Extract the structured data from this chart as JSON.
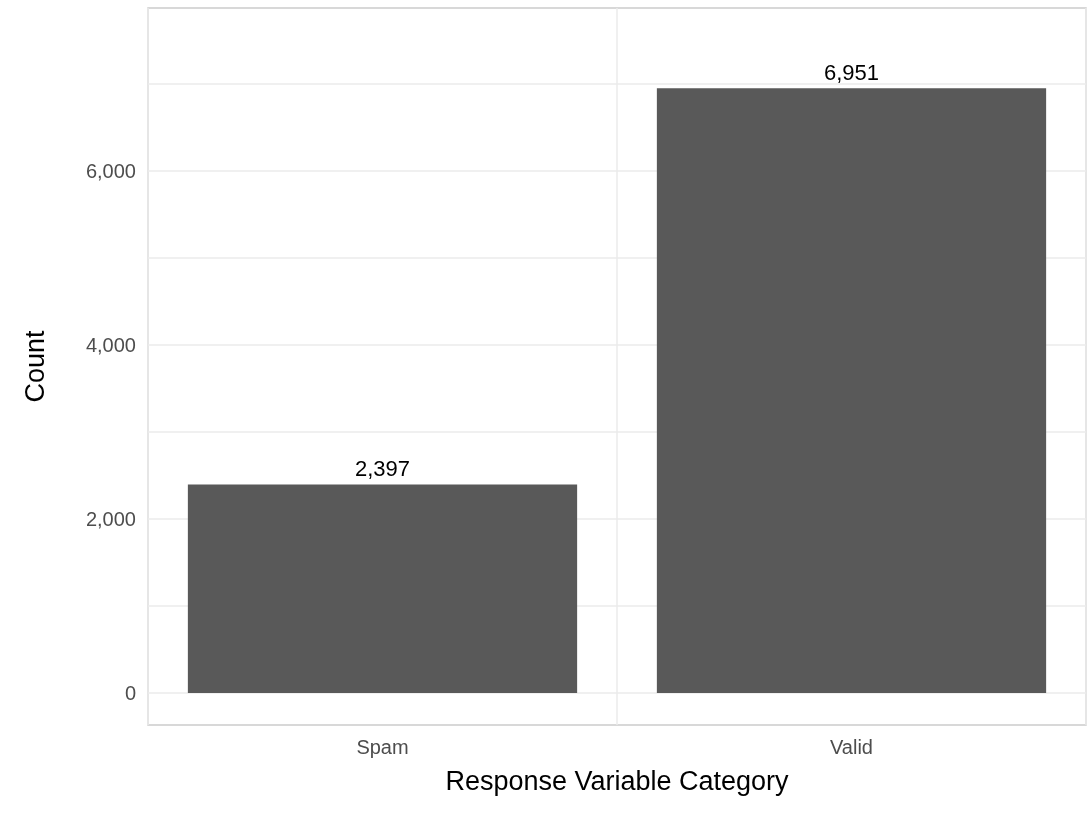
{
  "chart_data": {
    "type": "bar",
    "xlabel": "Response Variable Category",
    "ylabel": "Count",
    "categories": [
      "Spam",
      "Valid"
    ],
    "values": [
      2397,
      6951
    ],
    "color": "#595959",
    "ylim": [
      -368,
      7874
    ],
    "yticks": [
      0,
      {
        "value": 1000,
        "label": null
      },
      {
        "value": 2000,
        "label": "2,000"
      },
      {
        "value": 3000,
        "label": null
      },
      {
        "value": 4000,
        "label": "4,000"
      },
      {
        "value": 5000,
        "label": null
      },
      {
        "value": 6000,
        "label": "6,000"
      },
      {
        "value": 7000,
        "label": null
      }
    ],
    "value_labels": [
      "2,397",
      "6,951"
    ],
    "grid": true
  }
}
